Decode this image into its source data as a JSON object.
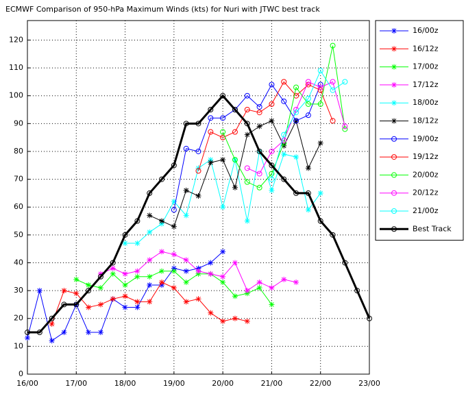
{
  "chart_data": {
    "type": "line",
    "title": "ECMWF Comparison of 950-hPa Maximum Winds (kts) for Nuri with JTWC best track",
    "xlim": [
      16,
      23
    ],
    "xticks": [
      {
        "value": 16,
        "label": "16/00"
      },
      {
        "value": 17,
        "label": "17/00"
      },
      {
        "value": 18,
        "label": "18/00"
      },
      {
        "value": 19,
        "label": "19/00"
      },
      {
        "value": 20,
        "label": "20/00"
      },
      {
        "value": 21,
        "label": "21/00"
      },
      {
        "value": 22,
        "label": "22/00"
      },
      {
        "value": 23,
        "label": "23/00"
      }
    ],
    "ylim": [
      0,
      127
    ],
    "yticks": [
      0,
      10,
      20,
      30,
      40,
      50,
      60,
      70,
      80,
      90,
      100,
      110,
      120
    ],
    "grid": true,
    "legend": "outside-right",
    "series": [
      {
        "name": "16/00z",
        "color": "#0000ff",
        "marker": "star",
        "x": [
          16,
          16.25,
          16.5,
          16.75,
          17,
          17.25,
          17.5,
          17.75,
          18,
          18.25,
          18.5,
          18.75,
          19,
          19.25,
          19.5,
          19.75,
          20
        ],
        "values": [
          13,
          30,
          12,
          15,
          25,
          15,
          15,
          27,
          24,
          24,
          32,
          32,
          38,
          37,
          38,
          40,
          44
        ]
      },
      {
        "name": "16/12z",
        "color": "#ff0000",
        "marker": "star",
        "x": [
          16.5,
          16.75,
          17,
          17.25,
          17.5,
          17.75,
          18,
          18.25,
          18.5,
          18.75,
          19,
          19.25,
          19.5,
          19.75,
          20,
          20.25,
          20.5
        ],
        "values": [
          18,
          30,
          29,
          24,
          25,
          27,
          28,
          26,
          26,
          33,
          31,
          26,
          27,
          22,
          19,
          20,
          19
        ]
      },
      {
        "name": "17/00z",
        "color": "#00ff00",
        "marker": "star",
        "x": [
          17,
          17.25,
          17.5,
          17.75,
          18,
          18.25,
          18.5,
          18.75,
          19,
          19.25,
          19.5,
          19.75,
          20,
          20.25,
          20.5,
          20.75,
          21
        ],
        "values": [
          34,
          32,
          31,
          36,
          32,
          35,
          35,
          37,
          37,
          33,
          36,
          36,
          33,
          28,
          29,
          31,
          25
        ]
      },
      {
        "name": "17/12z",
        "color": "#ff00ff",
        "marker": "star",
        "x": [
          17.5,
          17.75,
          18,
          18.25,
          18.5,
          18.75,
          19,
          19.25,
          19.5,
          19.75,
          20,
          20.25,
          20.5,
          20.75,
          21,
          21.25,
          21.5
        ],
        "values": [
          36,
          38,
          36,
          37,
          41,
          44,
          43,
          41,
          37,
          36,
          35,
          40,
          30,
          33,
          31,
          34,
          33
        ]
      },
      {
        "name": "18/00z",
        "color": "#00ffff",
        "marker": "star",
        "x": [
          18,
          18.25,
          18.5,
          18.75,
          19,
          19.25,
          19.5,
          19.75,
          20,
          20.25,
          20.5,
          20.75,
          21,
          21.25,
          21.5,
          21.75,
          22
        ],
        "values": [
          47,
          47,
          51,
          54,
          62,
          57,
          74,
          77,
          60,
          77,
          55,
          80,
          66,
          79,
          78,
          59,
          65
        ]
      },
      {
        "name": "18/12z",
        "color": "#000000",
        "marker": "star",
        "x": [
          18.5,
          18.75,
          19,
          19.25,
          19.5,
          19.75,
          20,
          20.25,
          20.5,
          20.75,
          21,
          21.25,
          21.5,
          21.75,
          22
        ],
        "values": [
          57,
          55,
          53,
          66,
          64,
          76,
          77,
          67,
          86,
          89,
          91,
          82,
          91,
          74,
          83
        ]
      },
      {
        "name": "19/00z",
        "color": "#0000ff",
        "marker": "circle",
        "x": [
          19,
          19.25,
          19.5,
          19.75,
          20,
          20.25,
          20.5,
          20.75,
          21,
          21.25,
          21.5,
          21.75,
          22
        ],
        "values": [
          59,
          81,
          80,
          92,
          92,
          95,
          100,
          96,
          104,
          98,
          91,
          93,
          104
        ]
      },
      {
        "name": "19/12z",
        "color": "#ff0000",
        "marker": "circle",
        "x": [
          19.5,
          19.75,
          20,
          20.25,
          20.5,
          20.75,
          21,
          21.25,
          21.5,
          21.75,
          22,
          22.25
        ],
        "values": [
          73,
          87,
          85,
          87,
          95,
          94,
          97,
          105,
          100,
          104,
          102,
          91
        ]
      },
      {
        "name": "20/00z",
        "color": "#00ff00",
        "marker": "circle",
        "x": [
          20,
          20.25,
          20.5,
          20.75,
          21,
          21.25,
          21.5,
          21.75,
          22,
          22.25,
          22.5
        ],
        "values": [
          87,
          77,
          69,
          67,
          72,
          83,
          103,
          97,
          97,
          118,
          88
        ]
      },
      {
        "name": "20/12z",
        "color": "#ff00ff",
        "marker": "circle",
        "x": [
          20.5,
          20.75,
          21,
          21.25,
          21.5,
          21.75,
          22,
          22.25,
          22.5
        ],
        "values": [
          74,
          72,
          80,
          84,
          95,
          105,
          103,
          105,
          89
        ]
      },
      {
        "name": "21/00z",
        "color": "#00ffff",
        "marker": "circle",
        "x": [
          21,
          21.25,
          21.5,
          21.75,
          22,
          22.25,
          22.5
        ],
        "values": [
          70,
          86,
          94,
          99,
          109,
          102,
          105
        ]
      },
      {
        "name": "Best Track",
        "color": "#000000",
        "marker": "circle",
        "linewidth": 3,
        "x": [
          16,
          16.25,
          16.5,
          16.75,
          17,
          17.25,
          17.5,
          17.75,
          18,
          18.25,
          18.5,
          18.75,
          19,
          19.25,
          19.5,
          19.75,
          20,
          20.25,
          20.5,
          20.75,
          21,
          21.25,
          21.5,
          21.75,
          22,
          22.25,
          22.5,
          22.75,
          23
        ],
        "values": [
          15,
          15,
          20,
          25,
          25,
          30,
          35,
          40,
          50,
          55,
          65,
          70,
          75,
          90,
          90,
          95,
          100,
          95,
          90,
          80,
          75,
          70,
          65,
          65,
          55,
          50,
          40,
          30,
          20
        ]
      }
    ]
  }
}
